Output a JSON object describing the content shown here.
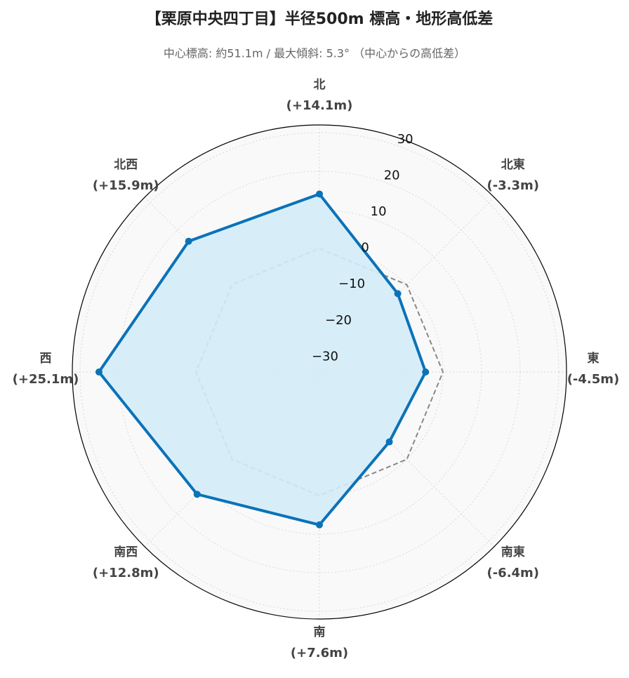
{
  "chart_data": {
    "type": "radar",
    "title": "【栗原中央四丁目】半径500m 標高・地形高低差",
    "subtitle": "中心標高: 約51.1m / 最大傾斜: 5.3° （中心からの高低差）",
    "categories": [
      "北",
      "北東",
      "東",
      "南東",
      "南",
      "南西",
      "西",
      "北西"
    ],
    "series": [
      {
        "color": "#0b72b8",
        "fill": "#d3ecf8",
        "values": [
          14.1,
          -3.3,
          -4.5,
          -6.4,
          7.6,
          12.8,
          25.1,
          15.9
        ],
        "value_labels": [
          "(+14.1m)",
          "(-3.3m)",
          "(-4.5m)",
          "(-6.4m)",
          "(+7.6m)",
          "(+12.8m)",
          "(+25.1m)",
          "(+15.9m)"
        ]
      }
    ],
    "reference_line": {
      "value": 0,
      "color": "#888888"
    },
    "ylim": [
      -32,
      32
    ],
    "yticks": [
      {
        "value": -30,
        "label": "−30"
      },
      {
        "value": -20,
        "label": "−20"
      },
      {
        "value": -10,
        "label": "−10"
      },
      0,
      10,
      20,
      30
    ],
    "grid": true
  }
}
